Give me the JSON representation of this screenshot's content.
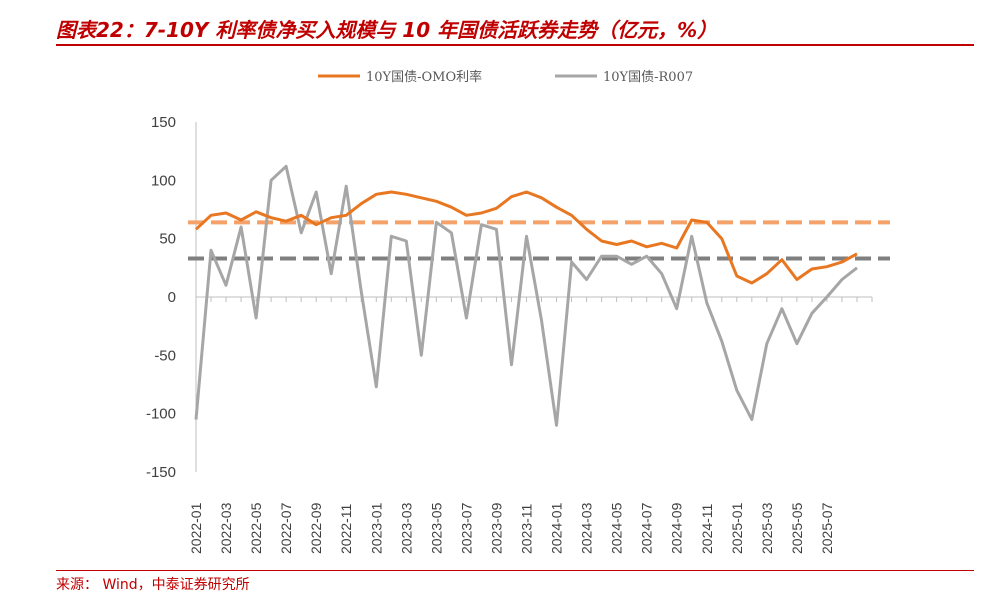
{
  "header": {
    "title": "图表22：7-10Y 利率债净买入规模与 10 年国债活跃券走势（亿元，%）"
  },
  "footer": {
    "source": "来源：   Wind，中泰证券研究所"
  },
  "colors": {
    "brand": "#c00000",
    "series_1": "#E87722",
    "series_2": "#A6A6A6",
    "ref_1": "#F4A26A",
    "ref_2": "#7F7F7F"
  },
  "chart_data": {
    "type": "line",
    "title": "",
    "xlabel": "",
    "ylabel": "",
    "ylim": [
      -150,
      150
    ],
    "yticks": [
      "150",
      "100",
      "50",
      "0",
      "-50",
      "-100",
      "-150"
    ],
    "ytick_values": [
      150,
      100,
      50,
      0,
      -50,
      -100,
      -150
    ],
    "xticks": [
      "2022-01",
      "2022-03",
      "2022-05",
      "2022-07",
      "2022-09",
      "2022-11",
      "2023-01",
      "2023-03",
      "2023-05",
      "2023-07",
      "2023-09",
      "2023-11",
      "2024-01",
      "2024-03",
      "2024-05",
      "2024-07",
      "2024-09",
      "2024-11",
      "2025-01",
      "2025-03",
      "2025-05",
      "2025-07"
    ],
    "grid": false,
    "legend": "top-center",
    "x_domain": [
      "2022-01",
      "2025-10"
    ],
    "reference_lines": [
      {
        "value": 64,
        "color": "#F4A26A",
        "style": "dashed"
      },
      {
        "value": 33,
        "color": "#7F7F7F",
        "style": "dashed"
      }
    ],
    "series": [
      {
        "name": "10Y国债-OMO利率",
        "color": "#E87722",
        "x": [
          "2022-01",
          "2022-02",
          "2022-03",
          "2022-04",
          "2022-05",
          "2022-06",
          "2022-07",
          "2022-08",
          "2022-09",
          "2022-10",
          "2022-11",
          "2022-12",
          "2023-01",
          "2023-02",
          "2023-03",
          "2023-04",
          "2023-05",
          "2023-06",
          "2023-07",
          "2023-08",
          "2023-09",
          "2023-10",
          "2023-11",
          "2023-12",
          "2024-01",
          "2024-02",
          "2024-03",
          "2024-04",
          "2024-05",
          "2024-06",
          "2024-07",
          "2024-08",
          "2024-09",
          "2024-10",
          "2024-11",
          "2024-12",
          "2025-01",
          "2025-02",
          "2025-03",
          "2025-04",
          "2025-05",
          "2025-06",
          "2025-07",
          "2025-08",
          "2025-09"
        ],
        "values": [
          58,
          70,
          72,
          66,
          73,
          68,
          65,
          70,
          62,
          68,
          70,
          80,
          88,
          90,
          88,
          85,
          82,
          77,
          70,
          72,
          76,
          86,
          90,
          85,
          77,
          70,
          58,
          48,
          45,
          48,
          43,
          46,
          42,
          66,
          64,
          50,
          18,
          12,
          20,
          32,
          15,
          24,
          26,
          30,
          37
        ]
      },
      {
        "name": "10Y国债-R007",
        "color": "#A6A6A6",
        "x": [
          "2022-01",
          "2022-02",
          "2022-03",
          "2022-04",
          "2022-05",
          "2022-06",
          "2022-07",
          "2022-08",
          "2022-09",
          "2022-10",
          "2022-11",
          "2022-12",
          "2023-01",
          "2023-02",
          "2023-03",
          "2023-04",
          "2023-05",
          "2023-06",
          "2023-07",
          "2023-08",
          "2023-09",
          "2023-10",
          "2023-11",
          "2023-12",
          "2024-01",
          "2024-02",
          "2024-03",
          "2024-04",
          "2024-05",
          "2024-06",
          "2024-07",
          "2024-08",
          "2024-09",
          "2024-10",
          "2024-11",
          "2024-12",
          "2025-01",
          "2025-02",
          "2025-03",
          "2025-04",
          "2025-05",
          "2025-06",
          "2025-07",
          "2025-08",
          "2025-09"
        ],
        "values": [
          -105,
          40,
          10,
          60,
          -18,
          100,
          112,
          55,
          90,
          20,
          95,
          5,
          -77,
          52,
          48,
          -50,
          64,
          55,
          -18,
          62,
          58,
          -58,
          52,
          -20,
          -110,
          30,
          15,
          35,
          35,
          28,
          35,
          20,
          -10,
          52,
          -5,
          -38,
          -80,
          -105,
          -40,
          -10,
          -40,
          -14,
          0,
          15,
          25
        ]
      }
    ]
  }
}
